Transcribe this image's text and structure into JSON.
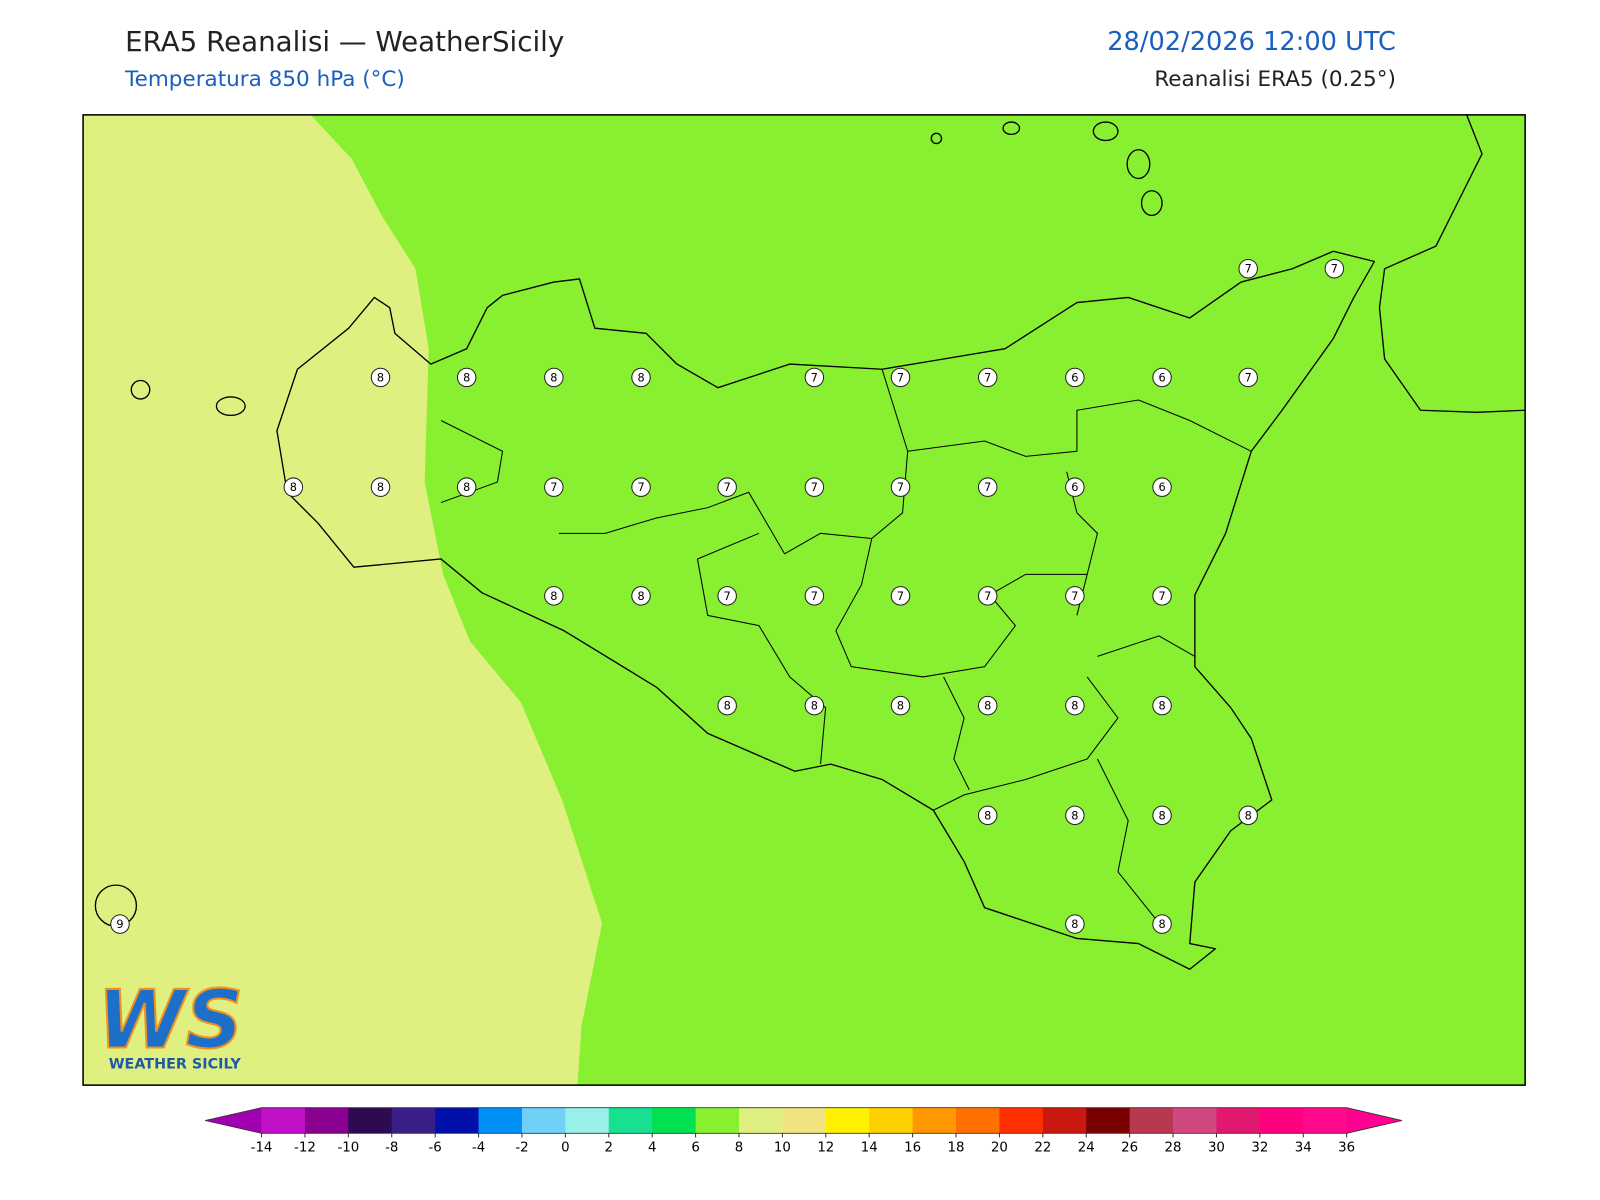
{
  "header": {
    "title": "ERA5 Reanalisi — WeatherSicily",
    "subtitle": "Temperatura 850 hPa (°C)",
    "datetime": "28/02/2026 12:00 UTC",
    "source": "Reanalisi ERA5 (0.25°)"
  },
  "stations": [
    7,
    7,
    8,
    8,
    8,
    8,
    7,
    7,
    7,
    6,
    6,
    7,
    8,
    8,
    8,
    7,
    7,
    7,
    7,
    7,
    7,
    6,
    6,
    8,
    8,
    7,
    7,
    7,
    7,
    7,
    7,
    8,
    8,
    8,
    8,
    8,
    8,
    8,
    8,
    8,
    8,
    9,
    8,
    8
  ],
  "colorbar": {
    "ticks": [
      -14,
      -12,
      -10,
      -8,
      -6,
      -4,
      -2,
      0,
      2,
      4,
      6,
      8,
      10,
      12,
      14,
      16,
      18,
      20,
      22,
      24,
      26,
      28,
      30,
      32,
      34,
      36
    ],
    "colors": [
      "#c010c8",
      "#8a0090",
      "#2e0a50",
      "#3a1e88",
      "#0010a8",
      "#0090f8",
      "#70d0f8",
      "#98f0e8",
      "#18e090",
      "#00e050",
      "#88f030",
      "#e0f080",
      "#f0e480",
      "#fff000",
      "#ffd000",
      "#ff9800",
      "#ff7000",
      "#ff3000",
      "#c81810",
      "#780000",
      "#b83850",
      "#d04880",
      "#e01870",
      "#ff0080",
      "#ff0a8c"
    ],
    "under_color": "#a000b0",
    "over_color": "#ff0090"
  },
  "logo": {
    "mark": "WS",
    "text": "WEATHER SICILY"
  }
}
